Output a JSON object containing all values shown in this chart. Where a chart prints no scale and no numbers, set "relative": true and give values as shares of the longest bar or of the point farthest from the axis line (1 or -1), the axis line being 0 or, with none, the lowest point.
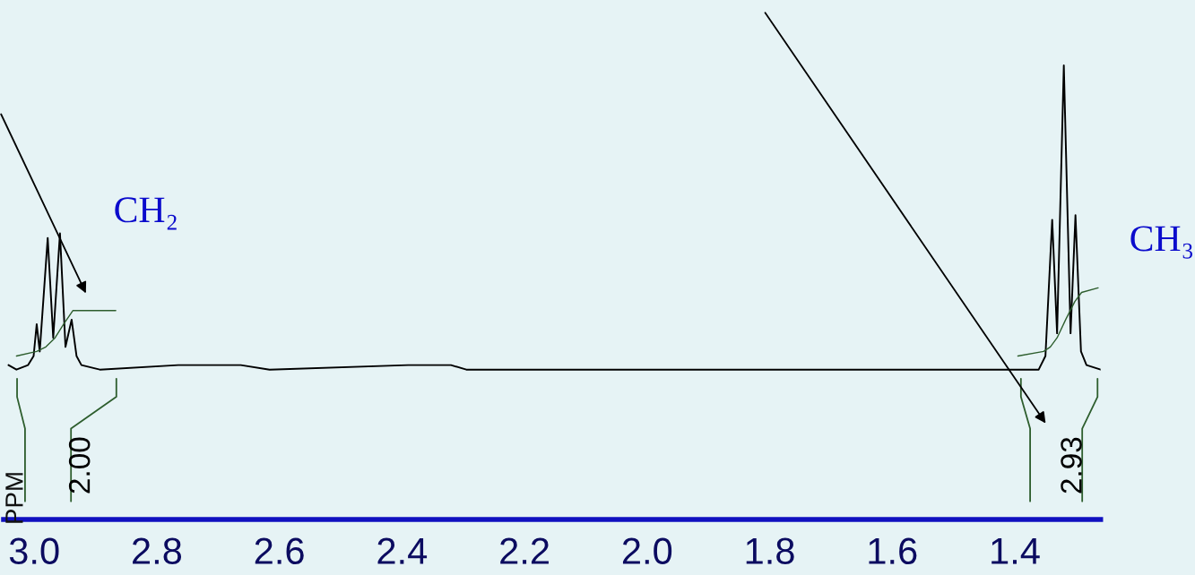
{
  "chart_data": {
    "type": "line",
    "relative": true,
    "xlim": [
      3.05,
      1.26
    ],
    "xticks": [
      {
        "value": 3.0,
        "label": "3.0"
      },
      {
        "value": 2.8,
        "label": "2.8"
      },
      {
        "value": 2.6,
        "label": "2.6"
      },
      {
        "value": 2.4,
        "label": "2.4"
      },
      {
        "value": 2.2,
        "label": "2.2"
      },
      {
        "value": 2.0,
        "label": "2.0"
      },
      {
        "value": 1.8,
        "label": "1.8"
      },
      {
        "value": 1.6,
        "label": "1.6"
      },
      {
        "value": 1.4,
        "label": "1.4"
      }
    ],
    "series": [
      {
        "color": "#000000",
        "x": [
          3.042,
          3.029,
          3.01,
          3.001,
          2.996,
          2.991,
          2.978,
          2.969,
          2.958,
          2.949,
          2.939,
          2.931,
          2.923,
          2.893,
          2.765,
          2.663,
          2.616,
          2.39,
          2.32,
          2.295,
          1.886,
          1.448,
          1.361,
          1.35,
          1.339,
          1.331,
          1.32,
          1.309,
          1.301,
          1.292,
          1.283,
          1.26
        ],
        "values": [
          0.34,
          0.33,
          0.34,
          0.36,
          0.43,
          0.37,
          0.62,
          0.4,
          0.63,
          0.38,
          0.44,
          0.36,
          0.34,
          0.33,
          0.34,
          0.34,
          0.33,
          0.34,
          0.34,
          0.33,
          0.33,
          0.33,
          0.33,
          0.36,
          0.66,
          0.41,
          1.0,
          0.41,
          0.67,
          0.37,
          0.34,
          0.33
        ]
      },
      {
        "color": "#2e5e2e",
        "x": [
          3.029,
          2.996,
          2.981,
          2.966,
          2.952,
          2.937,
          2.915,
          2.867
        ],
        "values": [
          0.36,
          0.37,
          0.38,
          0.4,
          0.43,
          0.46,
          0.46,
          0.46
        ]
      },
      {
        "color": "#2e5e2e",
        "x": [
          1.395,
          1.353,
          1.342,
          1.331,
          1.317,
          1.302,
          1.291,
          1.264
        ],
        "values": [
          0.36,
          0.37,
          0.38,
          0.4,
          0.44,
          0.48,
          0.5,
          0.51
        ]
      }
    ],
    "annotations": [
      "CH₂",
      "CH₃",
      "2.00",
      "2.93",
      "PPM"
    ]
  }
}
